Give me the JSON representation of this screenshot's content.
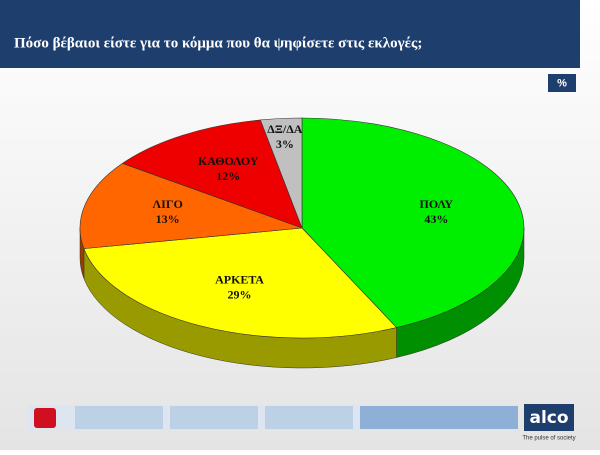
{
  "chart_data": {
    "type": "pie",
    "title": "Πόσο βέβαιοι είστε για το κόμμα που θα ψηφίσετε στις εκλογές;",
    "unit_badge": "%",
    "categories": [
      "ΠΟΛΥ",
      "ΑΡΚΕΤΑ",
      "ΛΙΓΟ",
      "ΚΑΘΟΛΟΥ",
      "ΔΞ/ΔΑ"
    ],
    "values": [
      43,
      29,
      13,
      12,
      3
    ],
    "value_labels": [
      "43%",
      "29%",
      "13%",
      "12%",
      "3%"
    ],
    "colors": [
      "#00ee00",
      "#ffff00",
      "#ff6600",
      "#ee0000",
      "#c0c0c0"
    ]
  },
  "footer": {
    "logo": "alco",
    "tagline": "The pulse of society"
  }
}
